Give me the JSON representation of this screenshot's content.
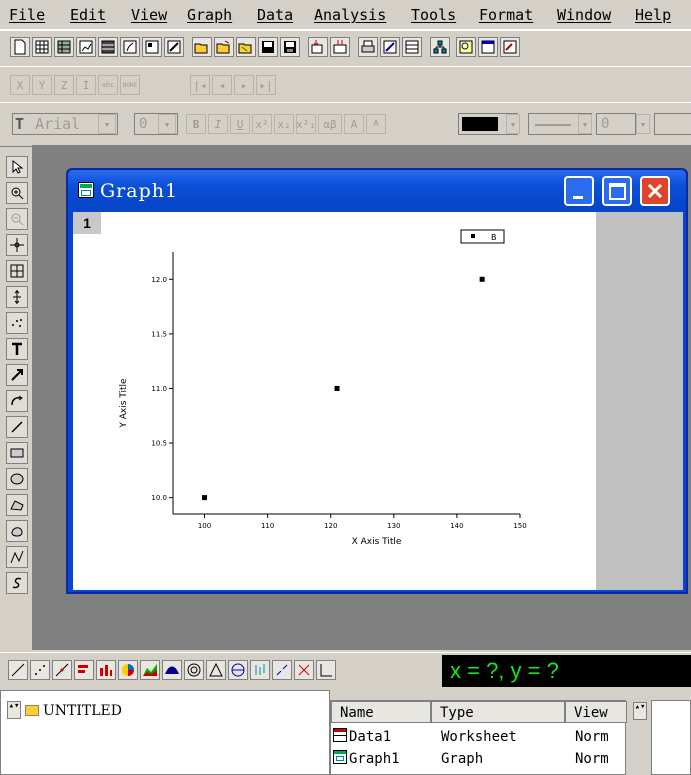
{
  "menu": [
    "File",
    "Edit",
    "View",
    "Graph",
    "Data",
    "Analysis",
    "Tools",
    "Format",
    "Window",
    "Help"
  ],
  "format_toolbar": {
    "font_name": "Arial",
    "font_size": "0",
    "line_width": "0"
  },
  "graph_window": {
    "title": "Graph1",
    "layer_badge": "1",
    "legend_label": "B"
  },
  "chart_data": {
    "type": "scatter",
    "xlabel": "X Axis Title",
    "ylabel": "Y Axis Title",
    "xlim": [
      95,
      150
    ],
    "ylim": [
      9.85,
      12.25
    ],
    "xticks": [
      "100",
      "110",
      "120",
      "130",
      "140",
      "150"
    ],
    "yticks": [
      "10.0",
      "10.5",
      "11.0",
      "11.5",
      "12.0"
    ],
    "series": [
      {
        "name": "B",
        "x": [
          100,
          121,
          144
        ],
        "y": [
          10.0,
          11.0,
          12.0
        ]
      }
    ],
    "legend": "top-right"
  },
  "status": "x = ?, y = ?",
  "project": {
    "root": "UNTITLED"
  },
  "list": {
    "headers": [
      "Name",
      "Type",
      "View"
    ],
    "rows": [
      {
        "name": "Data1",
        "type": "Worksheet",
        "view": "Norm"
      },
      {
        "name": "Graph1",
        "type": "Graph",
        "view": "Norm"
      }
    ]
  },
  "colors": {
    "titlebar": "#0a4fd8",
    "status_text": "#19e619",
    "close_button": "#e0452b"
  }
}
